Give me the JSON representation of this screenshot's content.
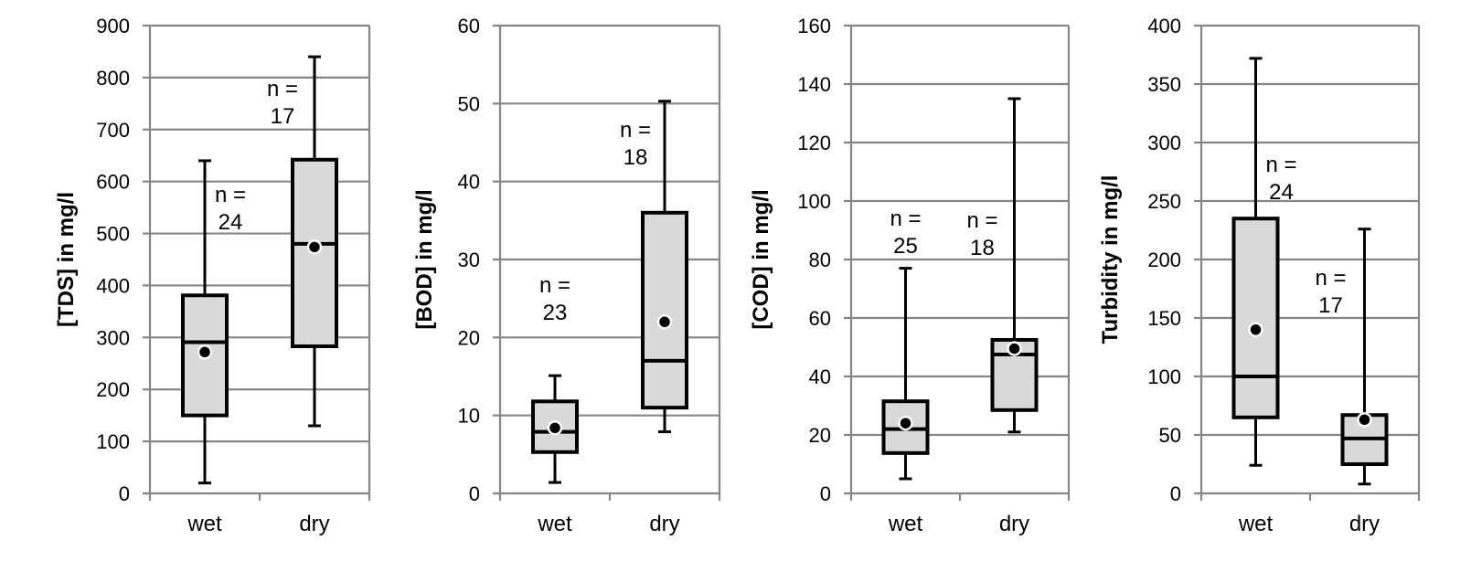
{
  "chart_data": [
    {
      "type": "box",
      "ylabel": "[TDS] in mg/l",
      "ylim": [
        0,
        900
      ],
      "yticks": [
        0,
        100,
        200,
        300,
        400,
        500,
        600,
        700,
        800,
        900
      ],
      "categories": [
        "wet",
        "dry"
      ],
      "boxes": [
        {
          "category": "wet",
          "min": 20,
          "q1": 150,
          "median": 291,
          "q3": 381,
          "max": 640,
          "mean": 272,
          "n_label": [
            "n =",
            "24"
          ]
        },
        {
          "category": "dry",
          "min": 130,
          "q1": 283,
          "median": 480,
          "q3": 642,
          "max": 840,
          "mean": 474,
          "n_label": [
            "n =",
            "17"
          ]
        }
      ],
      "grid": true
    },
    {
      "type": "box",
      "ylabel": "[BOD] in mg/l",
      "ylim": [
        0,
        60
      ],
      "yticks": [
        0,
        10,
        20,
        30,
        40,
        50,
        60
      ],
      "categories": [
        "wet",
        "dry"
      ],
      "boxes": [
        {
          "category": "wet",
          "min": 1.4,
          "q1": 5.3,
          "median": 7.9,
          "q3": 11.8,
          "max": 15.1,
          "mean": 8.4,
          "n_label": [
            "n =",
            "23"
          ]
        },
        {
          "category": "dry",
          "min": 7.9,
          "q1": 11,
          "median": 17,
          "q3": 36,
          "max": 50.3,
          "mean": 22,
          "n_label": [
            "n =",
            "18"
          ]
        }
      ],
      "grid": true
    },
    {
      "type": "box",
      "ylabel": "[COD] in mg/l",
      "ylim": [
        0,
        160
      ],
      "yticks": [
        0,
        20,
        40,
        60,
        80,
        100,
        120,
        140,
        160
      ],
      "categories": [
        "wet",
        "dry"
      ],
      "boxes": [
        {
          "category": "wet",
          "min": 5,
          "q1": 13.8,
          "median": 22,
          "q3": 31.5,
          "max": 77,
          "mean": 24,
          "n_label": [
            "n =",
            "25"
          ]
        },
        {
          "category": "dry",
          "min": 21,
          "q1": 28.5,
          "median": 47.5,
          "q3": 52.5,
          "max": 135,
          "mean": 49.5,
          "n_label": [
            "n =",
            "18"
          ]
        }
      ],
      "grid": true
    },
    {
      "type": "box",
      "ylabel": "Turbidity in mg/l",
      "ylim": [
        0,
        400
      ],
      "yticks": [
        0,
        50,
        100,
        150,
        200,
        250,
        300,
        350,
        400
      ],
      "categories": [
        "wet",
        "dry"
      ],
      "boxes": [
        {
          "category": "wet",
          "min": 24,
          "q1": 65,
          "median": 100,
          "q3": 235,
          "max": 372,
          "mean": 140,
          "n_label": [
            "n =",
            "24"
          ]
        },
        {
          "category": "dry",
          "min": 8,
          "q1": 25,
          "median": 47,
          "q3": 67,
          "max": 226,
          "mean": 63,
          "n_label": [
            "n =",
            "17"
          ]
        }
      ],
      "grid": true
    }
  ],
  "colors": {
    "box_fill": "#d9d9d9",
    "box_stroke": "#000000",
    "grid": "#868686",
    "axis": "#868686",
    "mean_marker_fill": "#000000",
    "mean_marker_stroke": "#ffffff"
  }
}
